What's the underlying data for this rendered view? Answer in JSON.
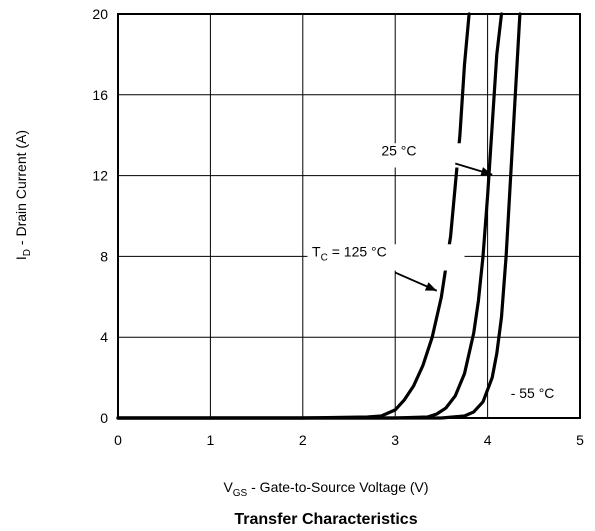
{
  "chart_data": {
    "type": "line",
    "title": "Transfer Characteristics",
    "xlabel": {
      "main": "V",
      "sub": "GS",
      "rest": " - Gate-to-Source Voltage (V)"
    },
    "ylabel": {
      "main": "I",
      "sub": "D",
      "rest": " - Drain Current (A)"
    },
    "xlim": [
      0,
      5
    ],
    "ylim": [
      0,
      20
    ],
    "xticks": [
      "0",
      "1",
      "2",
      "3",
      "4",
      "5"
    ],
    "yticks": [
      "0",
      "4",
      "8",
      "12",
      "16",
      "20"
    ],
    "grid": true,
    "series": [
      {
        "name": "T_C = 125 °C",
        "label": {
          "main": "T",
          "sub": "C",
          "rest": " = 125 °C"
        },
        "x": [
          0.0,
          2.0,
          2.7,
          2.85,
          3.0,
          3.1,
          3.2,
          3.3,
          3.4,
          3.5,
          3.6,
          3.7,
          3.75,
          3.8
        ],
        "y": [
          0.0,
          0.0,
          0.05,
          0.1,
          0.4,
          0.9,
          1.6,
          2.6,
          4.0,
          6.0,
          9.0,
          14.0,
          17.5,
          20.0
        ]
      },
      {
        "name": "25 °C",
        "label": {
          "main": "25 °C",
          "sub": "",
          "rest": ""
        },
        "x": [
          0.0,
          3.0,
          3.35,
          3.45,
          3.55,
          3.65,
          3.75,
          3.85,
          3.9,
          3.95,
          4.0,
          4.05,
          4.1,
          4.15
        ],
        "y": [
          0.0,
          0.0,
          0.05,
          0.2,
          0.5,
          1.1,
          2.2,
          4.2,
          5.8,
          8.0,
          11.0,
          14.5,
          18.0,
          20.0
        ]
      },
      {
        "name": "- 55 °C",
        "label": {
          "main": "- 55 °C",
          "sub": "",
          "rest": ""
        },
        "x": [
          0.0,
          3.5,
          3.75,
          3.85,
          3.95,
          4.05,
          4.1,
          4.15,
          4.2,
          4.25,
          4.3,
          4.35
        ],
        "y": [
          0.0,
          0.0,
          0.1,
          0.3,
          0.8,
          2.0,
          3.2,
          5.0,
          8.0,
          12.0,
          16.0,
          20.0
        ]
      }
    ]
  }
}
